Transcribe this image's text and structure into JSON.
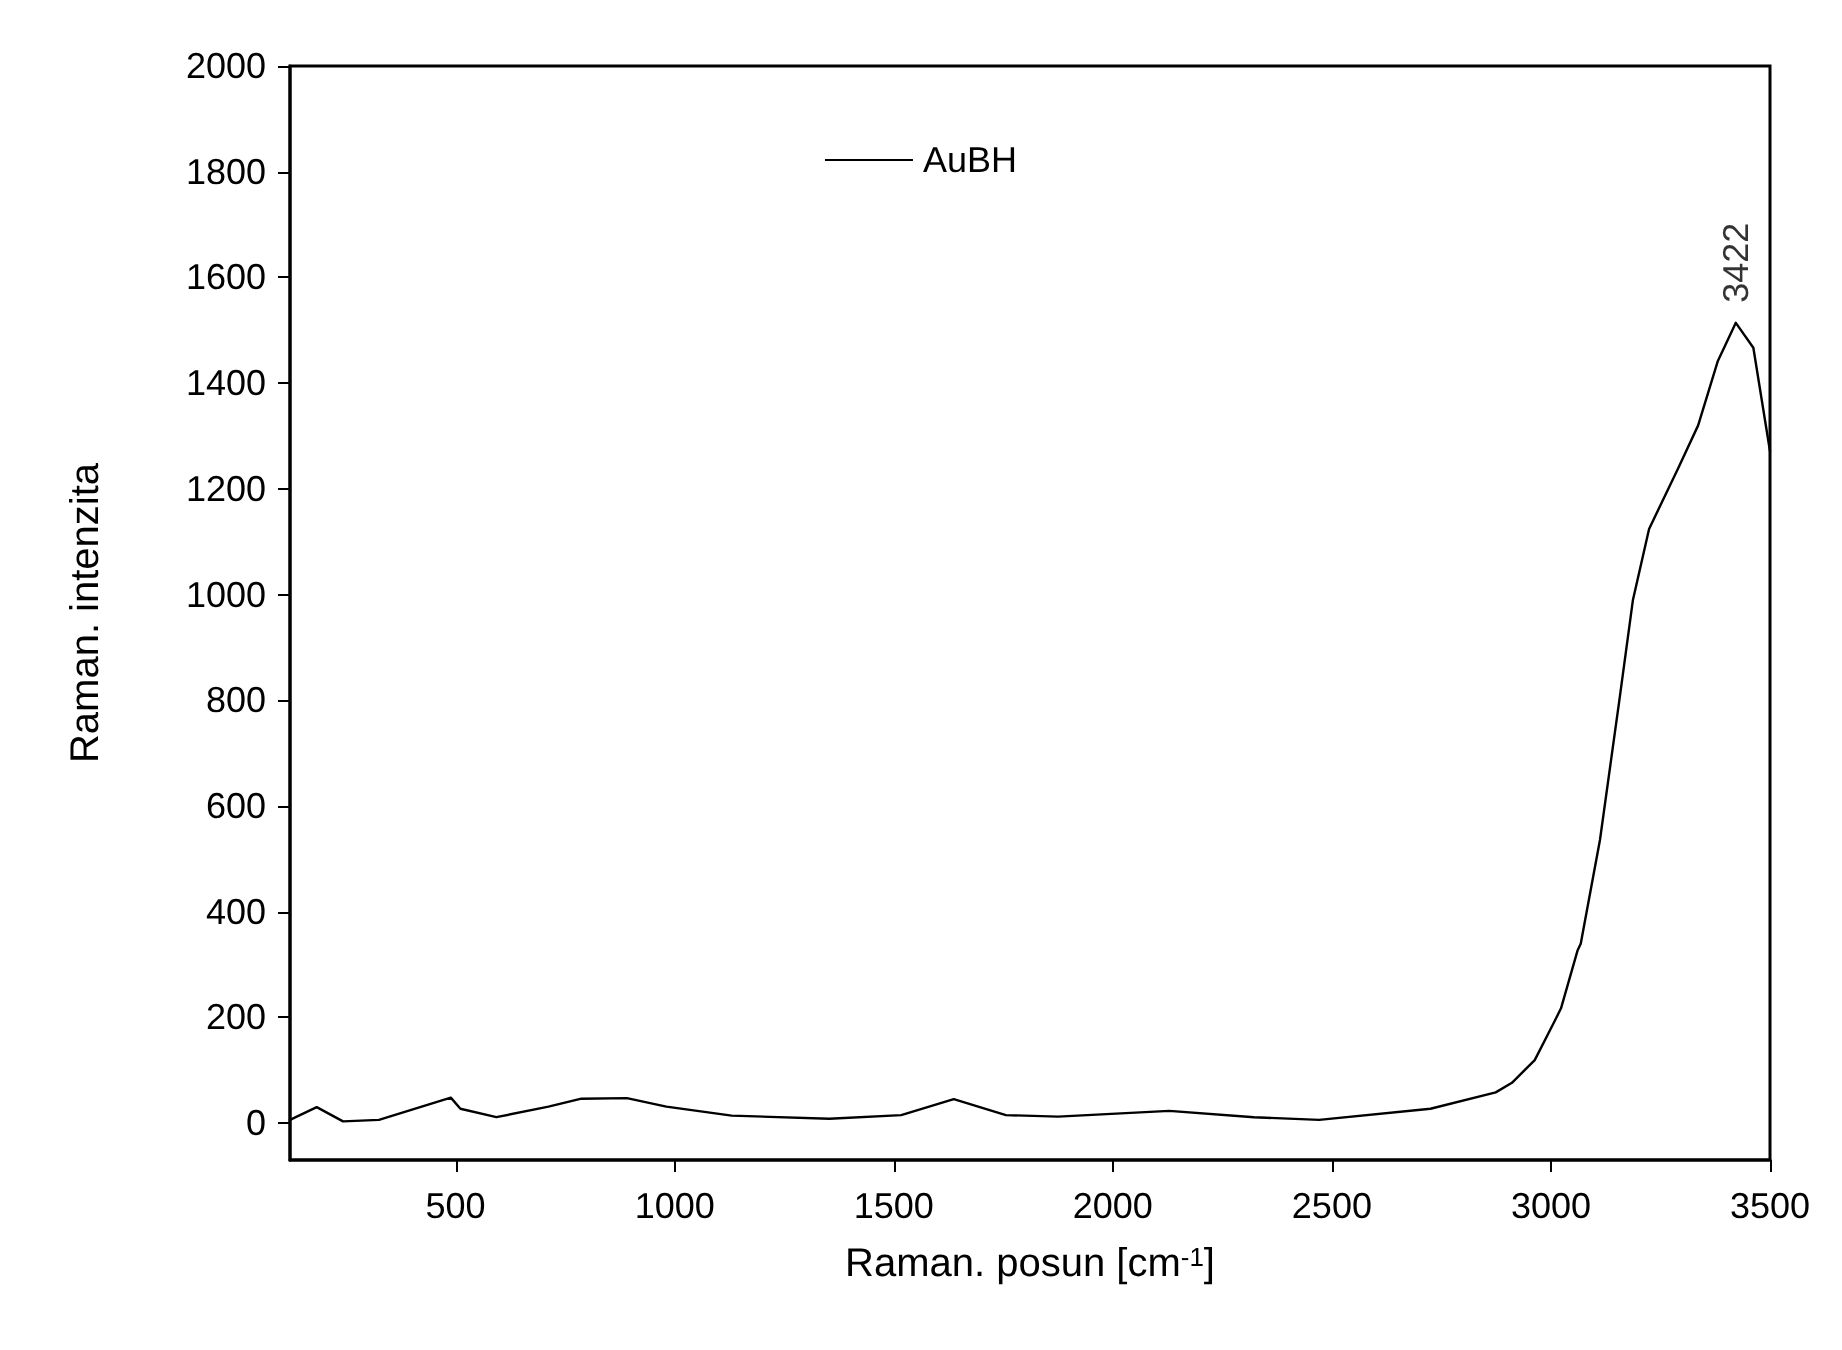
{
  "chart_data": {
    "type": "line",
    "xlabel": "Raman. posun [cm$^{-1}$]",
    "ylabel": "Raman. intenzita",
    "xlim": [
      122,
      3500
    ],
    "ylim": [
      -70,
      2000
    ],
    "xticks": [
      500,
      1000,
      1500,
      2000,
      2500,
      3000,
      3500
    ],
    "yticks": [
      0,
      200,
      400,
      600,
      800,
      1000,
      1200,
      1400,
      1600,
      1800,
      2000
    ],
    "legend": "top",
    "grid": false,
    "marker": "none",
    "line_style": "solid",
    "annotations": [
      {
        "text": "3422",
        "x": 3422,
        "y": 1514
      }
    ],
    "series": [
      {
        "name": "AuBH",
        "color": "#000000",
        "x": [
          122,
          183,
          243,
          325,
          489,
          511,
          593,
          712,
          787,
          891,
          981,
          1130,
          1353,
          1517,
          1637,
          1756,
          1875,
          2129,
          2322,
          2471,
          2725,
          2874,
          2911,
          2963,
          3008,
          3023,
          3061,
          3068,
          3112,
          3157,
          3187,
          3224,
          3291,
          3336,
          3381,
          3422,
          3462,
          3500
        ],
        "values": [
          6,
          30,
          3,
          6,
          48,
          27,
          11,
          31,
          46,
          47,
          31,
          14,
          8,
          15,
          45,
          15,
          12,
          23,
          11,
          6,
          27,
          58,
          76,
          119,
          192,
          217,
          327,
          339,
          536,
          805,
          989,
          1124,
          1240,
          1320,
          1442,
          1514,
          1467,
          1271
        ]
      }
    ]
  }
}
